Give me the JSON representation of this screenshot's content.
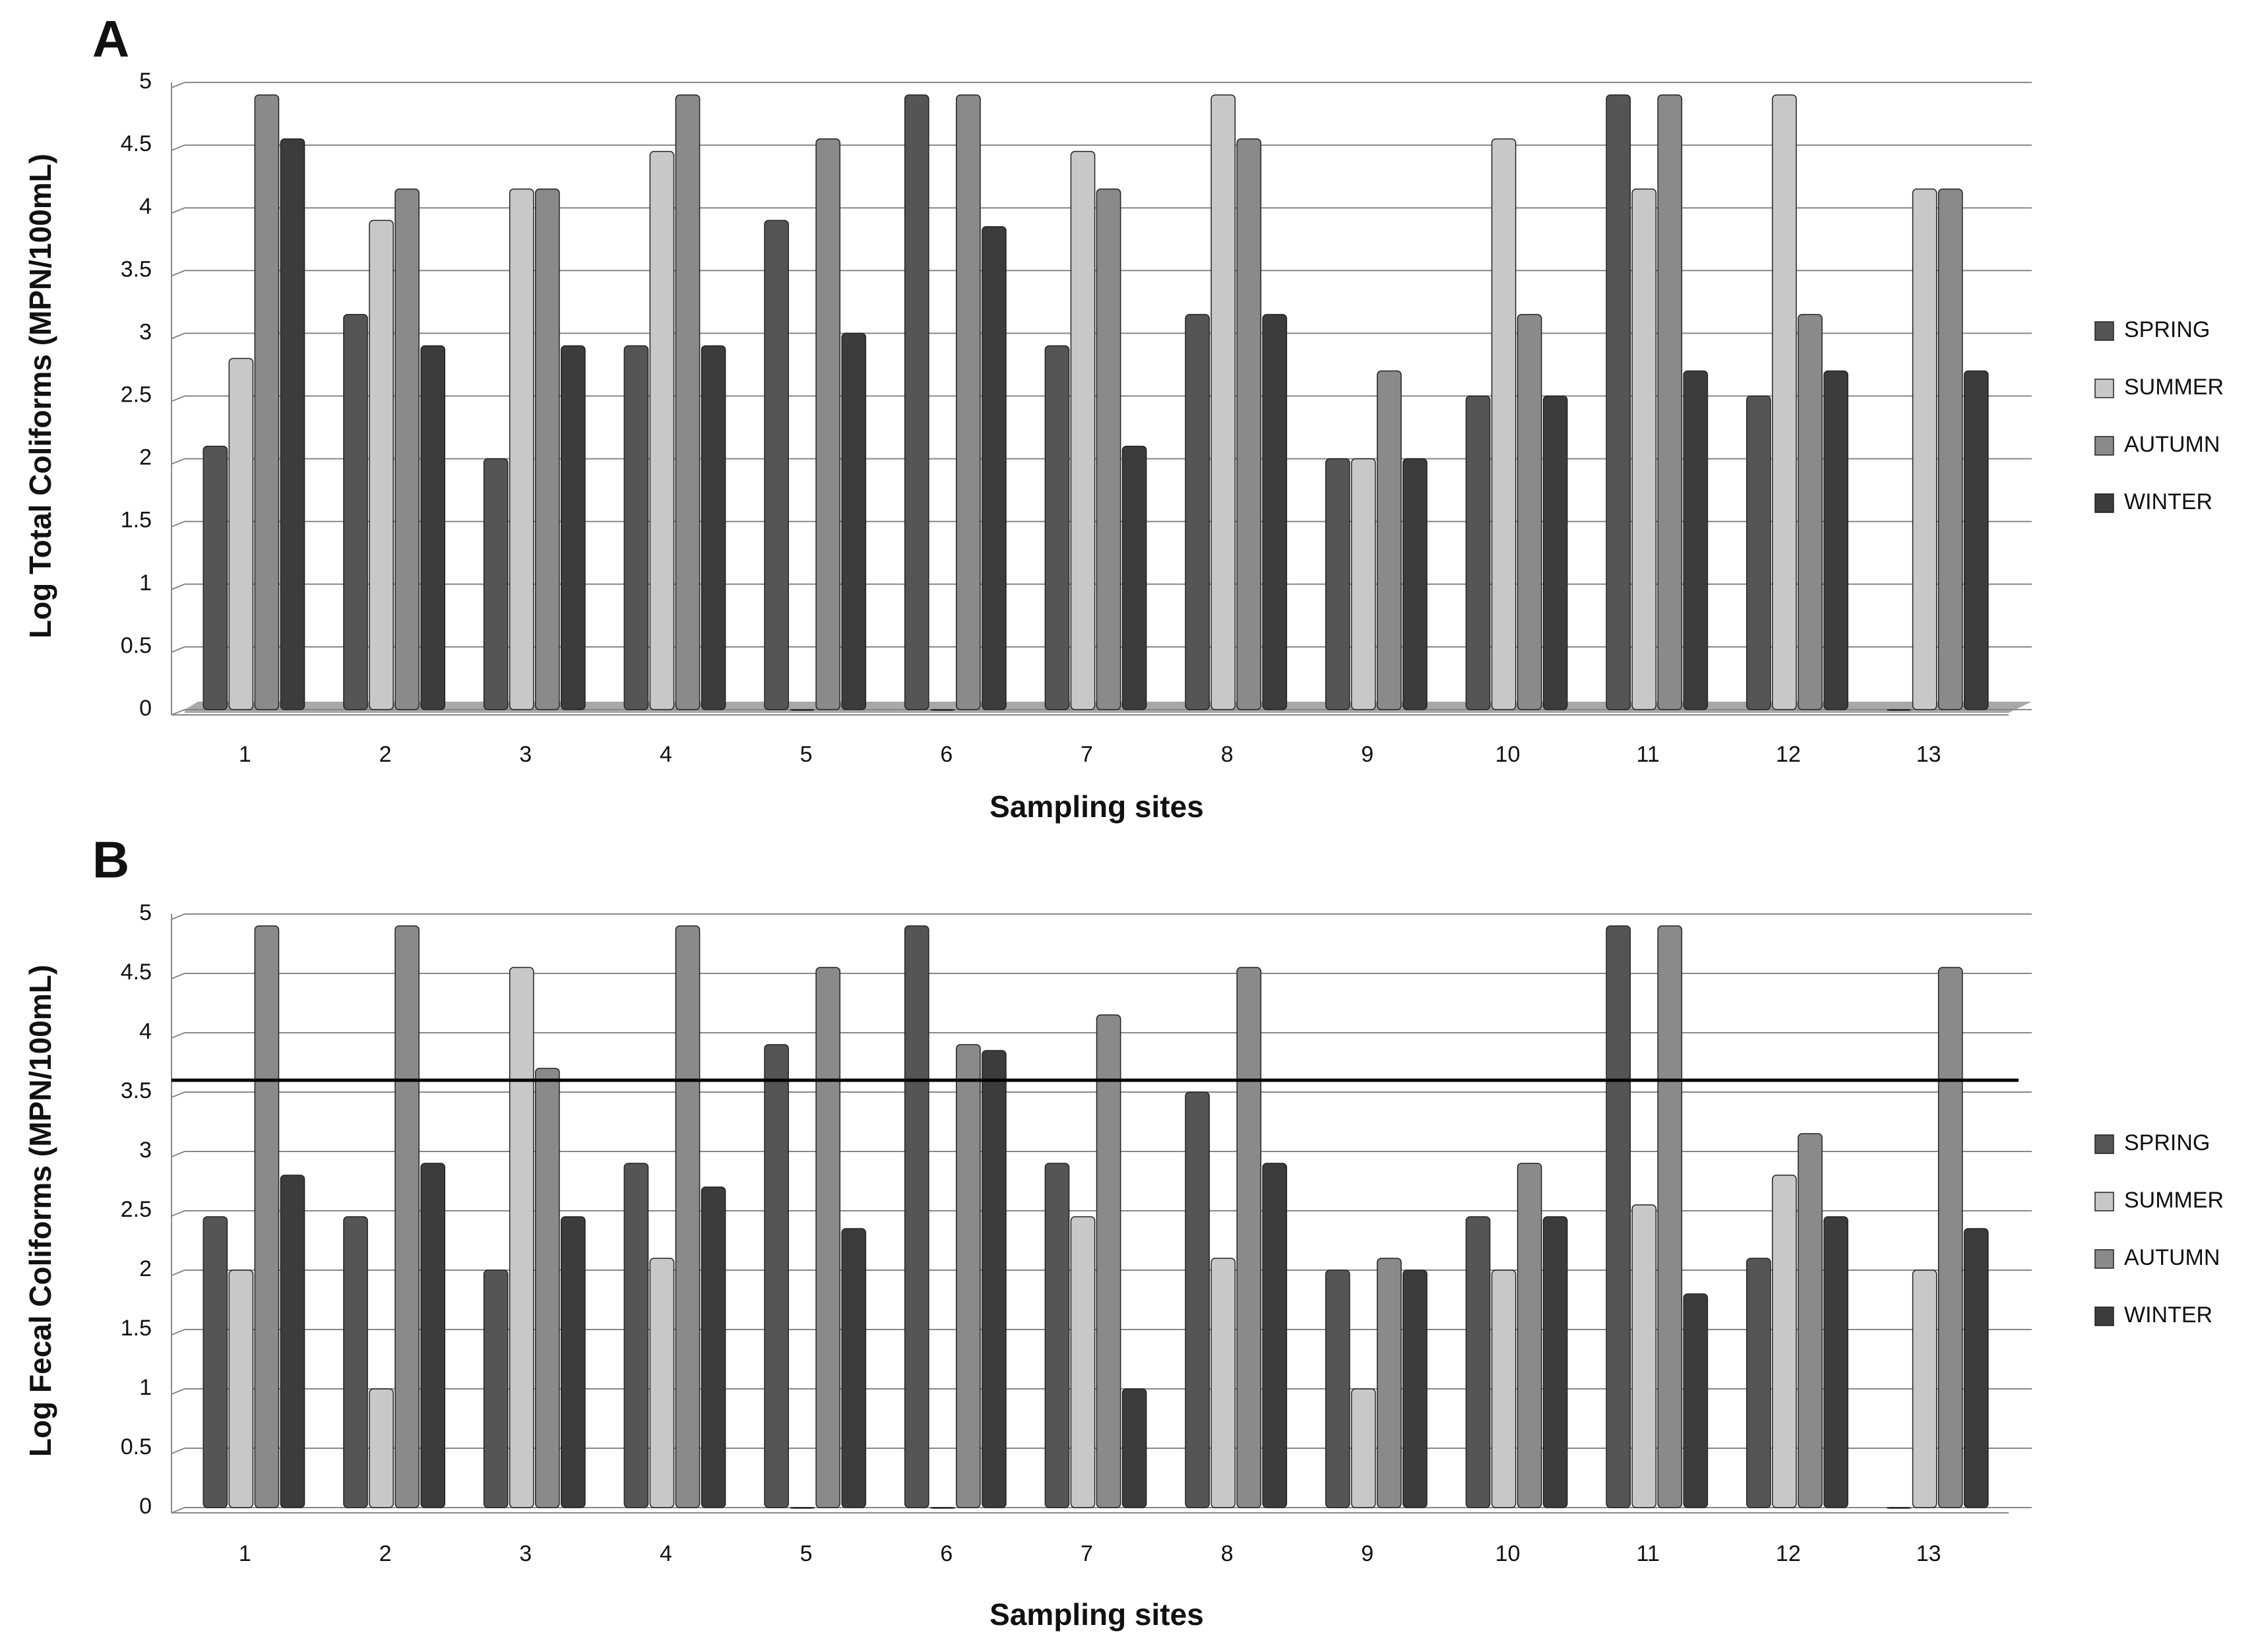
{
  "chart_data": [
    {
      "type": "bar",
      "title": "A",
      "x_label": "Sampling sites",
      "y_label": "Log Total Coliforms  (MPN/100mL)",
      "categories": [
        "1",
        "2",
        "3",
        "4",
        "5",
        "6",
        "7",
        "8",
        "9",
        "10",
        "11",
        "12",
        "13"
      ],
      "series": [
        {
          "name": "SPRING",
          "color": "#555555",
          "values": [
            2.1,
            3.15,
            2.0,
            2.9,
            3.9,
            4.9,
            2.9,
            3.15,
            2.0,
            2.5,
            4.9,
            2.5,
            0
          ]
        },
        {
          "name": "SUMMER",
          "color": "#c8c8c8",
          "values": [
            2.8,
            3.9,
            4.15,
            4.45,
            0,
            0,
            4.45,
            4.9,
            2.0,
            4.55,
            4.15,
            4.9,
            4.15
          ]
        },
        {
          "name": "AUTUMN",
          "color": "#8a8a8a",
          "values": [
            4.9,
            4.15,
            4.15,
            4.9,
            4.55,
            4.9,
            4.15,
            4.55,
            2.7,
            3.15,
            4.9,
            3.15,
            4.15
          ]
        },
        {
          "name": "WINTER",
          "color": "#3c3c3c",
          "values": [
            4.55,
            2.9,
            2.9,
            2.9,
            3.0,
            3.85,
            2.1,
            3.15,
            2.0,
            2.5,
            2.7,
            2.7,
            2.7
          ]
        }
      ],
      "ylim": [
        0,
        5
      ],
      "yticks": [
        0,
        0.5,
        1,
        1.5,
        2,
        2.5,
        3,
        3.5,
        4,
        4.5,
        5
      ],
      "grid": true,
      "legend": "right"
    },
    {
      "type": "bar",
      "title": "B",
      "x_label": "Sampling sites",
      "y_label": "Log Fecal Coliforms  (MPN/100mL)",
      "categories": [
        "1",
        "2",
        "3",
        "4",
        "5",
        "6",
        "7",
        "8",
        "9",
        "10",
        "11",
        "12",
        "13"
      ],
      "series": [
        {
          "name": "SPRING",
          "color": "#555555",
          "values": [
            2.45,
            2.45,
            2.0,
            2.9,
            3.9,
            4.9,
            2.9,
            3.5,
            2.0,
            2.45,
            4.9,
            2.1,
            0
          ]
        },
        {
          "name": "SUMMER",
          "color": "#c8c8c8",
          "values": [
            2.0,
            1.0,
            4.55,
            2.1,
            0,
            0,
            2.45,
            2.1,
            1.0,
            2.0,
            2.55,
            2.8,
            2.0
          ]
        },
        {
          "name": "AUTUMN",
          "color": "#8a8a8a",
          "values": [
            4.9,
            4.9,
            3.7,
            4.9,
            4.55,
            3.9,
            4.15,
            4.55,
            2.1,
            2.9,
            4.9,
            3.15,
            4.55
          ]
        },
        {
          "name": "WINTER",
          "color": "#3c3c3c",
          "values": [
            2.8,
            2.9,
            2.45,
            2.7,
            2.35,
            3.85,
            1.0,
            2.9,
            2.0,
            2.45,
            1.8,
            2.45,
            2.35
          ]
        }
      ],
      "ylim": [
        0,
        5
      ],
      "yticks": [
        0,
        0.5,
        1,
        1.5,
        2,
        2.5,
        3,
        3.5,
        4,
        4.5,
        5
      ],
      "grid": true,
      "legend": "right",
      "reference_line": 3.6
    }
  ]
}
